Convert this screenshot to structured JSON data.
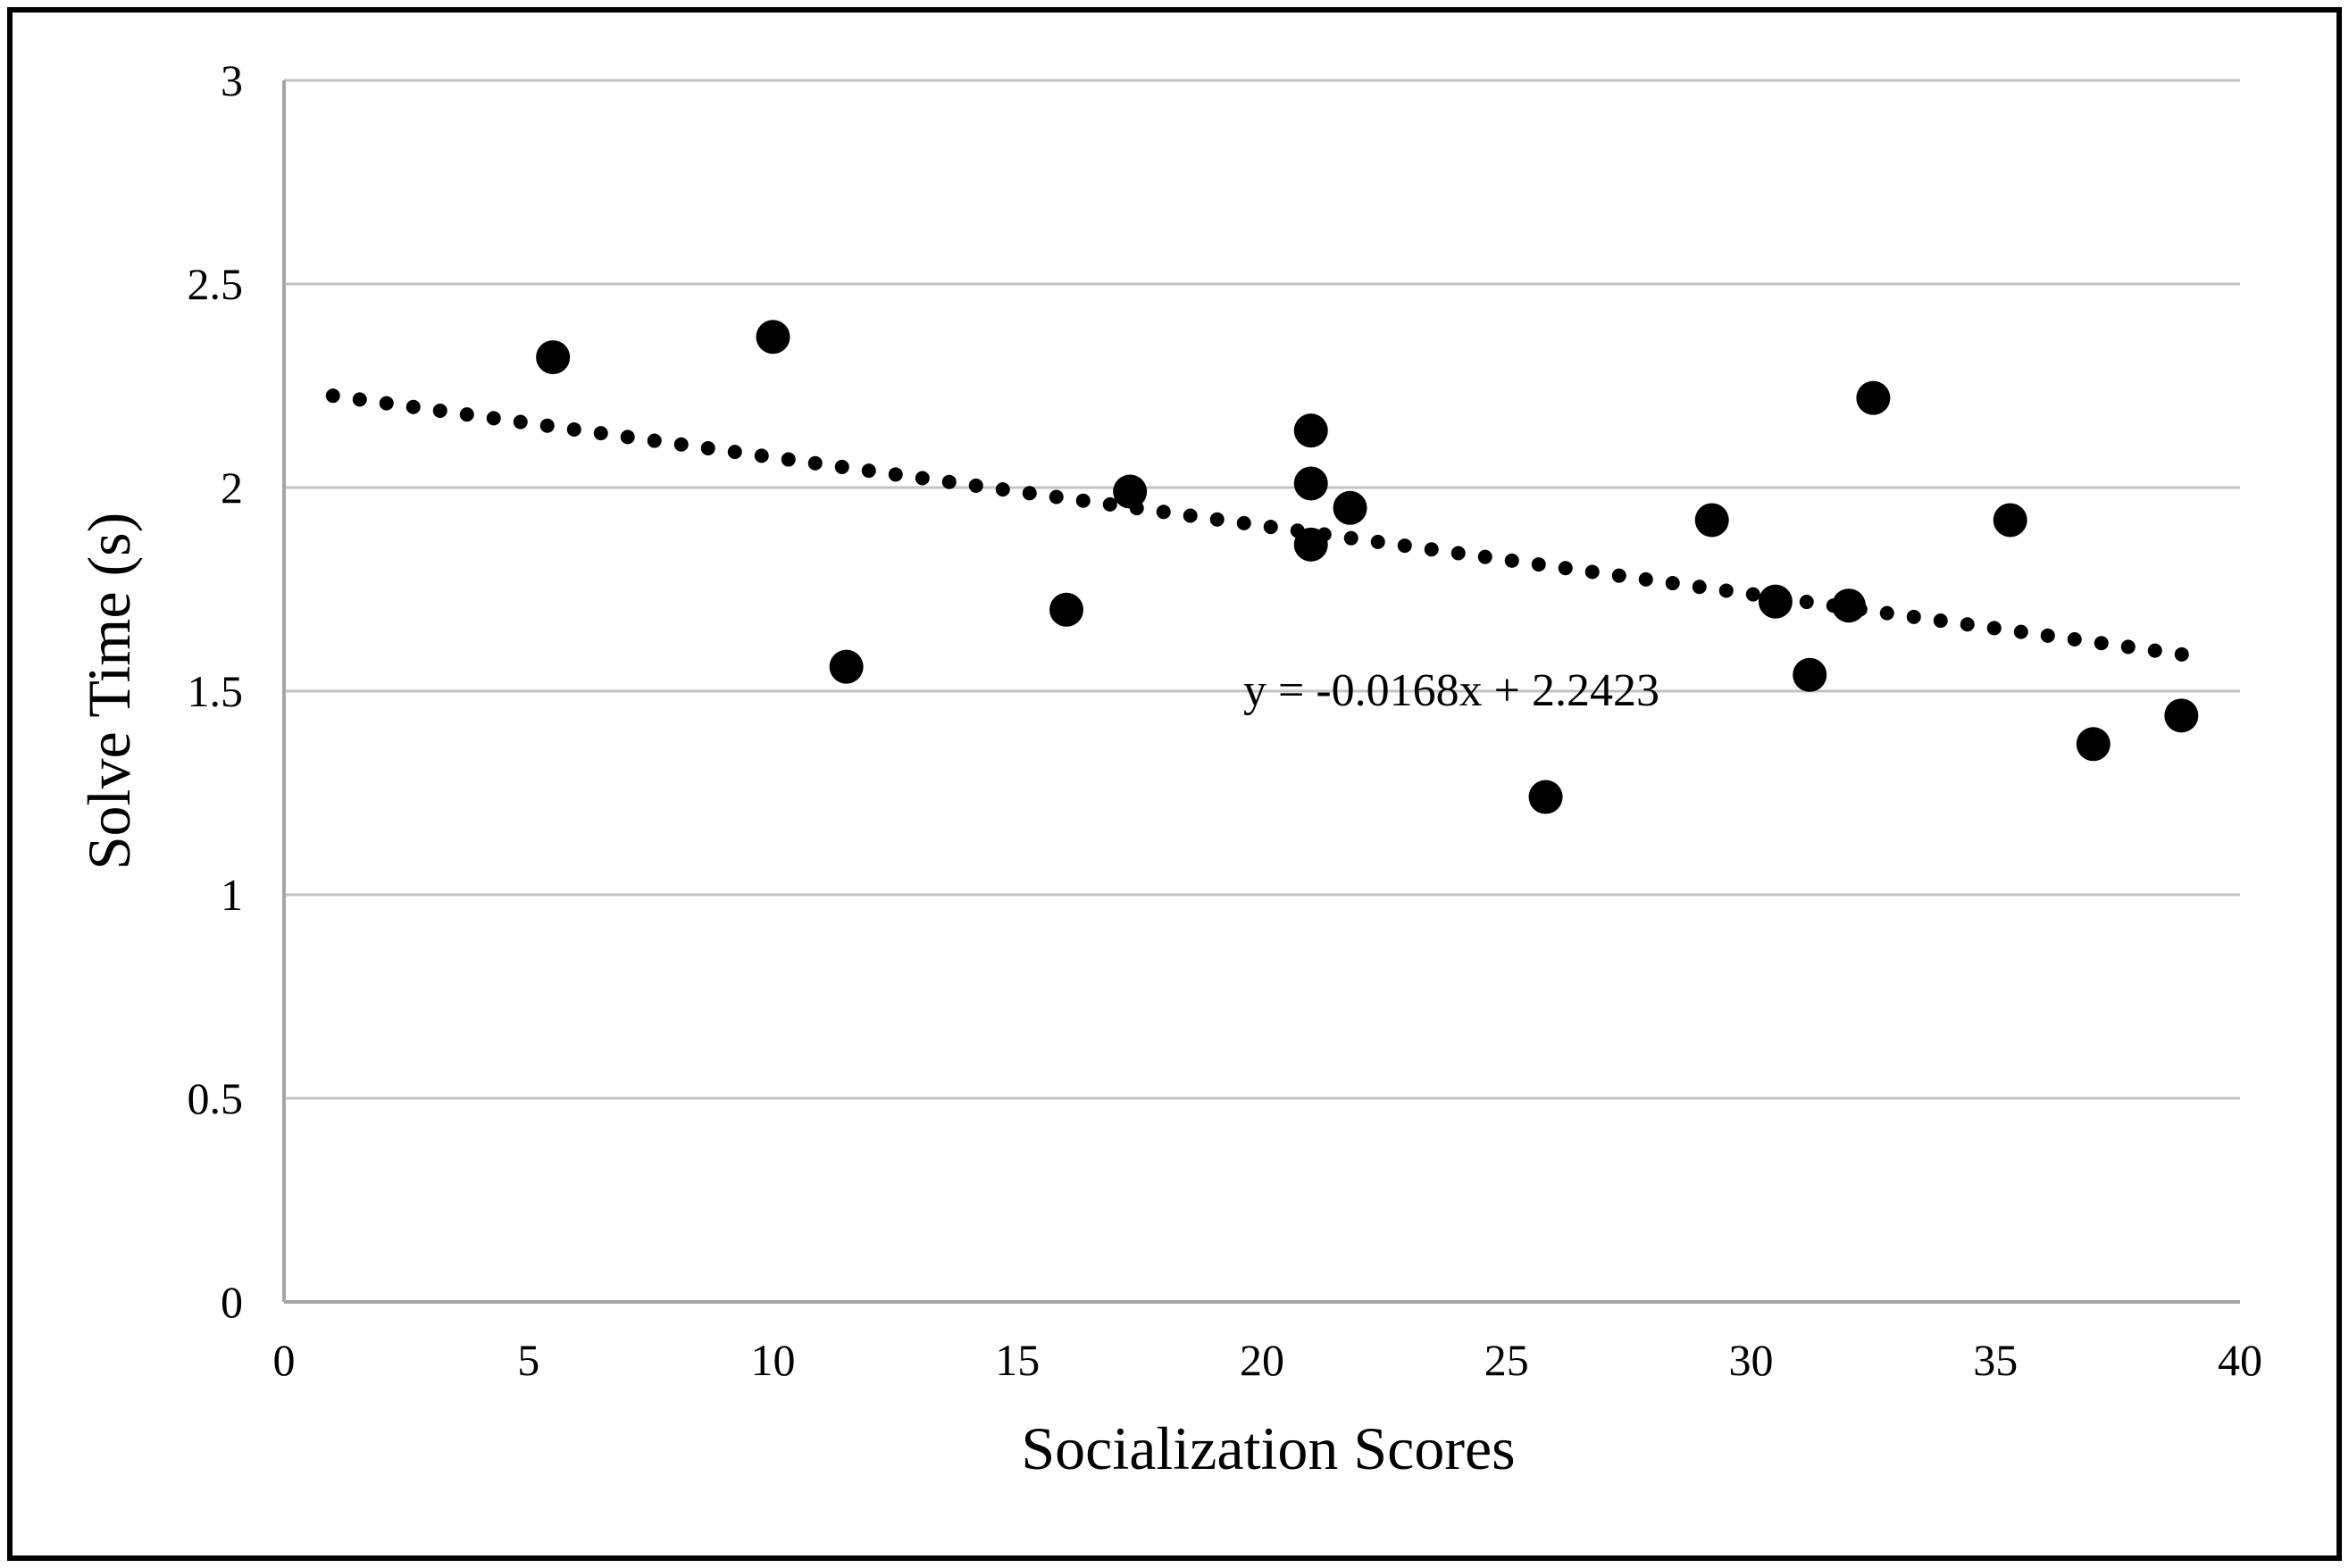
{
  "chart_data": {
    "type": "scatter",
    "title": "",
    "xlabel": "Socialization Scores",
    "ylabel": "Solve Time (s)",
    "xlim": [
      0,
      40
    ],
    "ylim": [
      0,
      3
    ],
    "x_ticks": [
      "0",
      "5",
      "10",
      "15",
      "20",
      "25",
      "30",
      "35",
      "40"
    ],
    "y_ticks": [
      "0",
      "0.5",
      "1",
      "1.5",
      "2",
      "2.5",
      "3"
    ],
    "grid": "horizontal",
    "legend": null,
    "points": [
      [
        5.5,
        2.32
      ],
      [
        10.0,
        2.37
      ],
      [
        11.5,
        1.56
      ],
      [
        16.0,
        1.7
      ],
      [
        17.3,
        1.99
      ],
      [
        21.0,
        2.14
      ],
      [
        21.0,
        2.01
      ],
      [
        21.0,
        1.86
      ],
      [
        21.8,
        1.95
      ],
      [
        25.8,
        1.24
      ],
      [
        29.2,
        1.92
      ],
      [
        30.5,
        1.72
      ],
      [
        31.2,
        1.54
      ],
      [
        32.0,
        1.71
      ],
      [
        32.5,
        2.22
      ],
      [
        35.3,
        1.92
      ],
      [
        37.0,
        1.37
      ],
      [
        38.8,
        1.44
      ]
    ],
    "trendline": {
      "label": "y = -0.0168x + 2.2423",
      "slope": -0.0168,
      "intercept": 2.2423,
      "x_start": 1,
      "x_end": 39,
      "style": "dotted"
    },
    "colors": {
      "marker": "#000000",
      "trendline": "#000000",
      "gridline": "#c3c3c3",
      "axis_line": "#a6a6a6",
      "figure_border": "#000000"
    }
  }
}
